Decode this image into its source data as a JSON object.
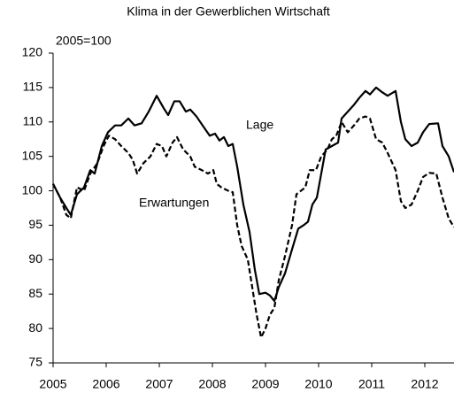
{
  "chart_data": {
    "type": "line",
    "title": "Klima in der Gewerblichen Wirtschaft",
    "annotation": "2005=100",
    "xlim": [
      2005,
      2012.55
    ],
    "xticks": [
      2005,
      2006,
      2007,
      2008,
      2009,
      2010,
      2011,
      2012
    ],
    "ylim": [
      75,
      120
    ],
    "yticks": [
      75,
      80,
      85,
      90,
      95,
      100,
      105,
      110,
      115,
      120
    ],
    "grid": false,
    "series": [
      {
        "name": "Lage",
        "color": "#000000",
        "style": "solid",
        "x": [
          2005.0,
          2005.133,
          2005.25,
          2005.333,
          2005.45,
          2005.583,
          2005.7,
          2005.783,
          2005.917,
          2006.033,
          2006.167,
          2006.283,
          2006.417,
          2006.533,
          2006.667,
          2006.8,
          2006.95,
          2007.083,
          2007.167,
          2007.283,
          2007.383,
          2007.5,
          2007.583,
          2007.7,
          2007.833,
          2007.95,
          2008.05,
          2008.133,
          2008.217,
          2008.3,
          2008.383,
          2008.467,
          2008.583,
          2008.7,
          2008.8,
          2008.883,
          2009.0,
          2009.083,
          2009.167,
          2009.25,
          2009.367,
          2009.5,
          2009.617,
          2009.717,
          2009.8,
          2009.883,
          2009.967,
          2010.05,
          2010.133,
          2010.25,
          2010.367,
          2010.433,
          2010.55,
          2010.667,
          2010.767,
          2010.883,
          2010.967,
          2011.083,
          2011.2,
          2011.3,
          2011.45,
          2011.55,
          2011.633,
          2011.75,
          2011.867,
          2011.967,
          2012.083,
          2012.25,
          2012.333,
          2012.45,
          2012.55
        ],
        "values": [
          101,
          99,
          97.5,
          96.5,
          99.5,
          100.5,
          103,
          102.5,
          106.5,
          108.5,
          109.5,
          109.5,
          110.5,
          109.5,
          109.8,
          111.5,
          113.8,
          112,
          111,
          113,
          113,
          111.5,
          111.8,
          110.8,
          109.3,
          108,
          108.3,
          107.3,
          107.8,
          106.5,
          106.8,
          103.5,
          98,
          94,
          88.5,
          85,
          85.2,
          84.8,
          84,
          86,
          88,
          91.5,
          94.5,
          95,
          95.5,
          98,
          99,
          102.5,
          106,
          106.5,
          107,
          110.5,
          111.5,
          112.5,
          113.5,
          114.5,
          114,
          115,
          114.3,
          113.8,
          114.5,
          110,
          107.5,
          106.5,
          107,
          108.5,
          109.7,
          109.8,
          106.5,
          105,
          102.7
        ]
      },
      {
        "name": "Erwartungen",
        "color": "#000000",
        "style": "dashed",
        "x": [
          2005.0,
          2005.133,
          2005.25,
          2005.333,
          2005.45,
          2005.583,
          2005.7,
          2005.833,
          2005.95,
          2006.05,
          2006.167,
          2006.283,
          2006.417,
          2006.5,
          2006.583,
          2006.7,
          2006.833,
          2006.95,
          2007.05,
          2007.133,
          2007.25,
          2007.333,
          2007.45,
          2007.583,
          2007.667,
          2007.8,
          2007.917,
          2008.017,
          2008.083,
          2008.167,
          2008.3,
          2008.383,
          2008.467,
          2008.55,
          2008.667,
          2008.75,
          2008.833,
          2008.917,
          2009.0,
          2009.083,
          2009.167,
          2009.25,
          2009.367,
          2009.5,
          2009.583,
          2009.667,
          2009.75,
          2009.833,
          2009.95,
          2010.05,
          2010.167,
          2010.25,
          2010.333,
          2010.433,
          2010.55,
          2010.667,
          2010.767,
          2010.883,
          2010.967,
          2011.083,
          2011.2,
          2011.3,
          2011.45,
          2011.55,
          2011.633,
          2011.75,
          2011.867,
          2011.967,
          2012.083,
          2012.217,
          2012.333,
          2012.45,
          2012.55
        ],
        "values": [
          101,
          99,
          96.5,
          96,
          100.5,
          100,
          102.5,
          104,
          106.5,
          108,
          107.5,
          106.5,
          105.5,
          104.5,
          102.5,
          104,
          105,
          106.8,
          106.5,
          105,
          107,
          107.8,
          106,
          105,
          103.5,
          103,
          102.5,
          103,
          101,
          100.5,
          100,
          99.8,
          95,
          92,
          90,
          86,
          82,
          78.7,
          80,
          82,
          83,
          87,
          90.5,
          95,
          99.5,
          100,
          100.5,
          103,
          103,
          105,
          106,
          107.5,
          108,
          110,
          108.5,
          109.5,
          110.5,
          110.8,
          110.5,
          107.5,
          107,
          105.5,
          103,
          98.5,
          97.5,
          98,
          100,
          102,
          102.6,
          102.5,
          99,
          96,
          94.7
        ]
      }
    ]
  }
}
